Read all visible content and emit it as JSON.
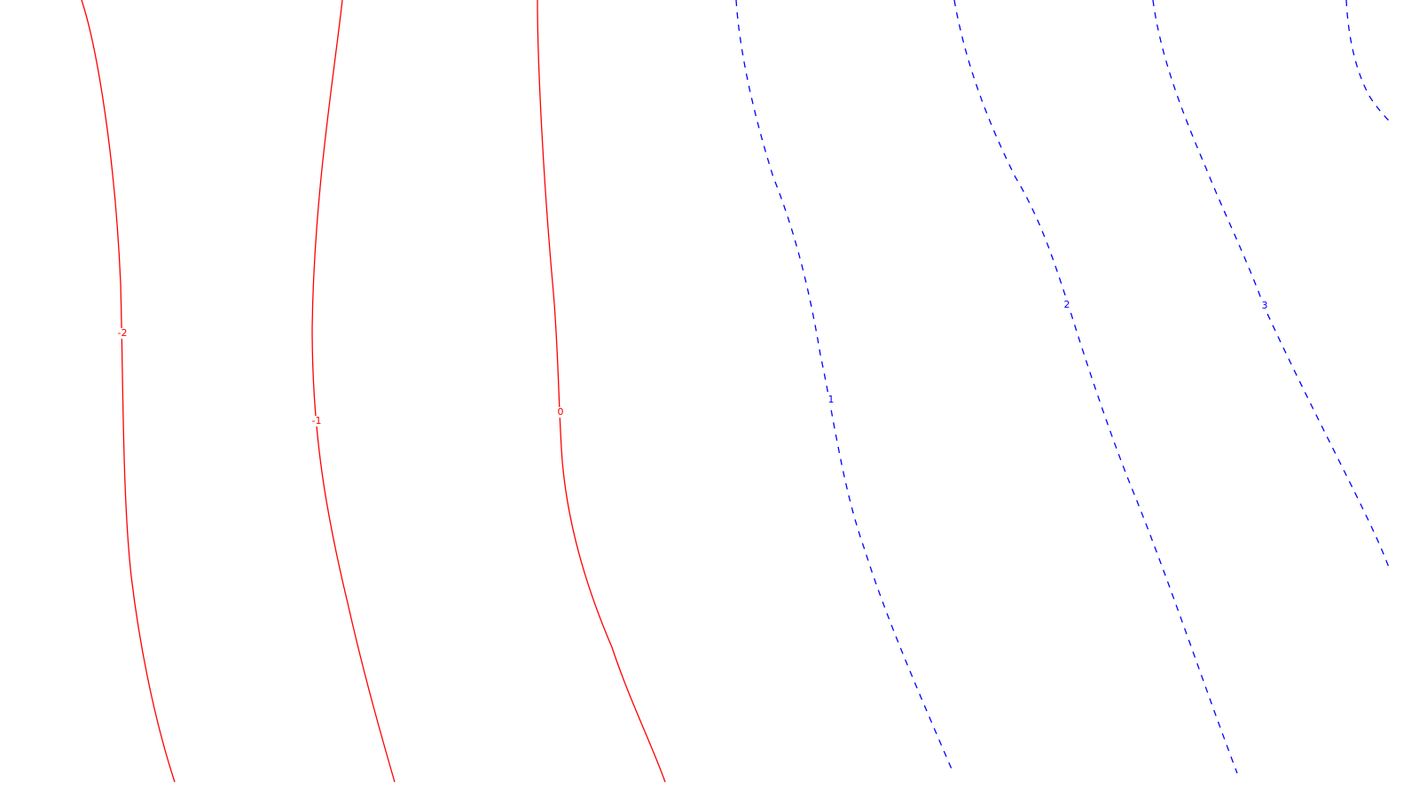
{
  "chart_data": {
    "type": "contour",
    "title": "",
    "xlabel": "",
    "ylabel": "",
    "levels": [
      {
        "value": -2,
        "label": "-2",
        "style": "solid",
        "color": "#ff0000"
      },
      {
        "value": -1,
        "label": "-1",
        "style": "solid",
        "color": "#ff0000"
      },
      {
        "value": 0,
        "label": "0",
        "style": "solid",
        "color": "#ff0000"
      },
      {
        "value": 1,
        "label": "1",
        "style": "dashed",
        "color": "#0000ff"
      },
      {
        "value": 2,
        "label": "2",
        "style": "dashed",
        "color": "#0000ff"
      },
      {
        "value": 3,
        "label": "3",
        "style": "dashed",
        "color": "#0000ff"
      },
      {
        "value": 4,
        "label": "",
        "style": "dashed",
        "color": "#0000ff"
      }
    ],
    "legend": "none"
  }
}
